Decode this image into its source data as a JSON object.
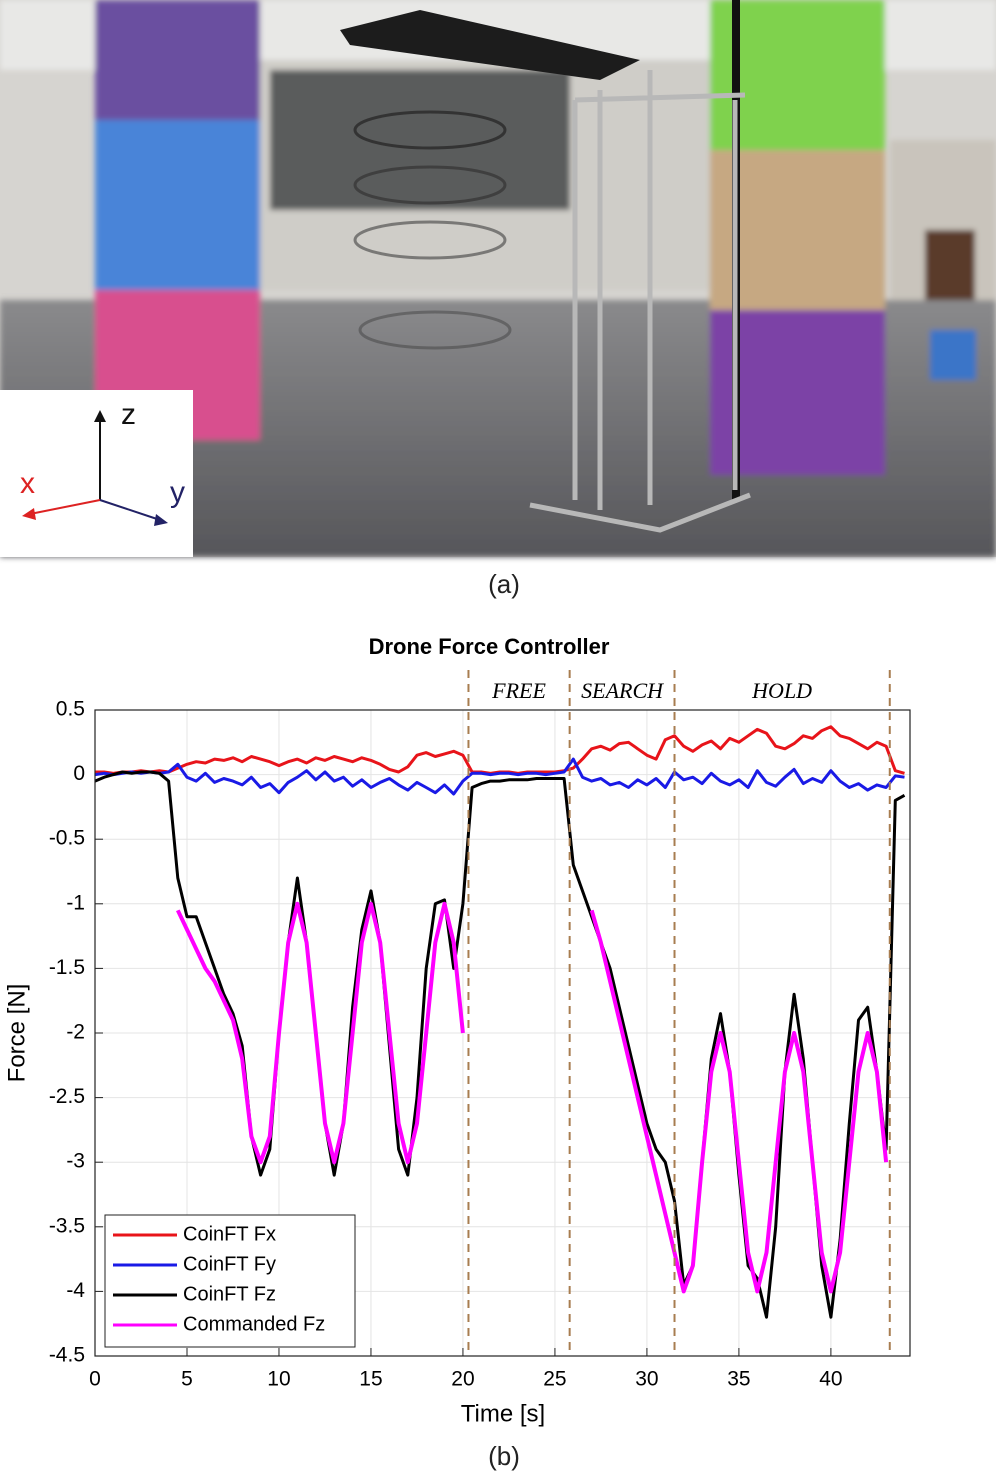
{
  "caption_a": "(a)",
  "caption_b": "(b)",
  "photo_axes": {
    "z": "z",
    "x": "x",
    "y": "y"
  },
  "chart_data": {
    "type": "line",
    "title": "Drone Force Controller",
    "x_label": "Time [s]",
    "y_label": "Force [N]",
    "xlim": [
      0,
      44.3
    ],
    "ylim": [
      -4.5,
      0.5
    ],
    "xticks": [
      0,
      5,
      10,
      15,
      20,
      25,
      30,
      35,
      40
    ],
    "yticks": [
      0.5,
      0,
      -0.5,
      -1,
      -1.5,
      -2,
      -2.5,
      -3,
      -3.5,
      -4,
      -4.5
    ],
    "grid": true,
    "legend": "lower left",
    "phase_boundaries": [
      20.3,
      25.8,
      31.5,
      43.2
    ],
    "phases": [
      "FREE",
      "SEARCH",
      "HOLD"
    ],
    "x": [
      0,
      0.5,
      1,
      1.5,
      2,
      2.5,
      3,
      3.5,
      4,
      4.5,
      5,
      5.5,
      6,
      6.5,
      7,
      7.5,
      8,
      8.5,
      9,
      9.5,
      10,
      10.5,
      11,
      11.5,
      12,
      12.5,
      13,
      13.5,
      14,
      14.5,
      15,
      15.5,
      16,
      16.5,
      17,
      17.5,
      18,
      18.5,
      19,
      19.5,
      20,
      20.5,
      21,
      21.5,
      22,
      22.5,
      23,
      23.5,
      24,
      24.5,
      25,
      25.5,
      26,
      26.5,
      27,
      27.5,
      28,
      28.5,
      29,
      29.5,
      30,
      30.5,
      31,
      31.5,
      32,
      32.5,
      33,
      33.5,
      34,
      34.5,
      35,
      35.5,
      36,
      36.5,
      37,
      37.5,
      38,
      38.5,
      39,
      39.5,
      40,
      40.5,
      41,
      41.5,
      42,
      42.5,
      43,
      43.5,
      44
    ],
    "series": [
      {
        "name": "CoinFT Fx",
        "color": "#e8141a",
        "values": [
          0.02,
          0.02,
          0.01,
          0.02,
          0.02,
          0.03,
          0.02,
          0.03,
          0.02,
          0.05,
          0.08,
          0.1,
          0.09,
          0.12,
          0.11,
          0.13,
          0.1,
          0.14,
          0.12,
          0.1,
          0.07,
          0.1,
          0.12,
          0.09,
          0.13,
          0.11,
          0.14,
          0.12,
          0.1,
          0.13,
          0.11,
          0.08,
          0.04,
          0.02,
          0.06,
          0.15,
          0.17,
          0.14,
          0.16,
          0.18,
          0.15,
          0.02,
          0.02,
          0.01,
          0.02,
          0.02,
          0.01,
          0.02,
          0.02,
          0.02,
          0.02,
          0.03,
          0.05,
          0.12,
          0.2,
          0.22,
          0.19,
          0.24,
          0.25,
          0.2,
          0.15,
          0.12,
          0.27,
          0.3,
          0.22,
          0.18,
          0.23,
          0.26,
          0.2,
          0.28,
          0.25,
          0.3,
          0.35,
          0.32,
          0.22,
          0.2,
          0.24,
          0.3,
          0.28,
          0.34,
          0.37,
          0.3,
          0.28,
          0.24,
          0.2,
          0.25,
          0.22,
          0.03,
          0.01
        ]
      },
      {
        "name": "CoinFT Fy",
        "color": "#1a1ae6",
        "values": [
          0,
          0.01,
          0,
          0.01,
          0.02,
          0.01,
          0.02,
          0.01,
          0.02,
          0.08,
          -0.02,
          -0.05,
          0.01,
          -0.06,
          -0.03,
          -0.05,
          -0.08,
          -0.02,
          -0.1,
          -0.07,
          -0.14,
          -0.06,
          -0.02,
          0.03,
          -0.04,
          0.02,
          -0.05,
          -0.02,
          -0.09,
          -0.04,
          -0.1,
          -0.06,
          -0.03,
          -0.08,
          -0.12,
          -0.06,
          -0.1,
          -0.14,
          -0.08,
          -0.15,
          -0.05,
          0.01,
          0.01,
          0,
          0.01,
          0.01,
          0,
          0.01,
          0.01,
          0,
          0.01,
          0.02,
          0.12,
          -0.02,
          -0.05,
          -0.03,
          -0.08,
          -0.06,
          -0.1,
          -0.04,
          -0.08,
          -0.03,
          -0.1,
          0.02,
          -0.04,
          -0.02,
          -0.07,
          0.01,
          -0.05,
          -0.08,
          -0.04,
          -0.1,
          0.03,
          -0.06,
          -0.09,
          -0.02,
          0.04,
          -0.07,
          -0.03,
          -0.06,
          0.03,
          -0.05,
          -0.1,
          -0.07,
          -0.12,
          -0.08,
          -0.1,
          -0.01,
          -0.02
        ]
      },
      {
        "name": "CoinFT Fz",
        "color": "#000000",
        "values": [
          -0.05,
          -0.02,
          0,
          0.02,
          0.01,
          0.02,
          0.02,
          0.01,
          -0.05,
          -0.8,
          -1.1,
          -1.1,
          -1.3,
          -1.5,
          -1.7,
          -1.85,
          -2.1,
          -2.8,
          -3.1,
          -2.9,
          -2.0,
          -1.3,
          -0.8,
          -1.3,
          -2.0,
          -2.7,
          -3.1,
          -2.7,
          -1.8,
          -1.2,
          -0.9,
          -1.3,
          -2.1,
          -2.9,
          -3.1,
          -2.5,
          -1.5,
          -1.0,
          -0.97,
          -1.5,
          -1.0,
          -0.1,
          -0.07,
          -0.05,
          -0.05,
          -0.04,
          -0.04,
          -0.04,
          -0.03,
          -0.03,
          -0.03,
          -0.03,
          -0.7,
          -0.9,
          -1.1,
          -1.3,
          -1.5,
          -1.8,
          -2.1,
          -2.4,
          -2.7,
          -2.9,
          -3.0,
          -3.3,
          -3.95,
          -3.8,
          -3.0,
          -2.2,
          -1.85,
          -2.3,
          -3.1,
          -3.8,
          -3.9,
          -4.2,
          -3.5,
          -2.3,
          -1.7,
          -2.2,
          -3.0,
          -3.8,
          -4.2,
          -3.6,
          -2.7,
          -1.9,
          -1.8,
          -2.3,
          -2.9,
          -0.2,
          -0.16
        ]
      },
      {
        "name": "Commanded Fz",
        "color": "#ff00ff",
        "values": [
          null,
          null,
          null,
          null,
          null,
          null,
          null,
          null,
          null,
          -1.05,
          -1.2,
          -1.35,
          -1.5,
          -1.6,
          -1.75,
          -1.9,
          -2.2,
          -2.8,
          -3.0,
          -2.8,
          -2.0,
          -1.3,
          -1.0,
          -1.3,
          -2.0,
          -2.7,
          -3.0,
          -2.7,
          -2.0,
          -1.3,
          -1.0,
          -1.3,
          -2.0,
          -2.7,
          -3.0,
          -2.7,
          -2.0,
          -1.3,
          -1.0,
          -1.3,
          -2.0,
          null,
          null,
          null,
          null,
          null,
          null,
          null,
          null,
          null,
          null,
          null,
          null,
          null,
          -1.05,
          -1.3,
          -1.6,
          -1.9,
          -2.2,
          -2.5,
          -2.8,
          -3.1,
          -3.4,
          -3.7,
          -4.0,
          -3.8,
          -3.0,
          -2.3,
          -2.0,
          -2.3,
          -3.0,
          -3.7,
          -4.0,
          -3.7,
          -3.0,
          -2.3,
          -2.0,
          -2.3,
          -3.0,
          -3.7,
          -4.0,
          -3.7,
          -3.0,
          -2.3,
          -2.0,
          -2.3,
          -3.0,
          null,
          null
        ]
      }
    ]
  }
}
